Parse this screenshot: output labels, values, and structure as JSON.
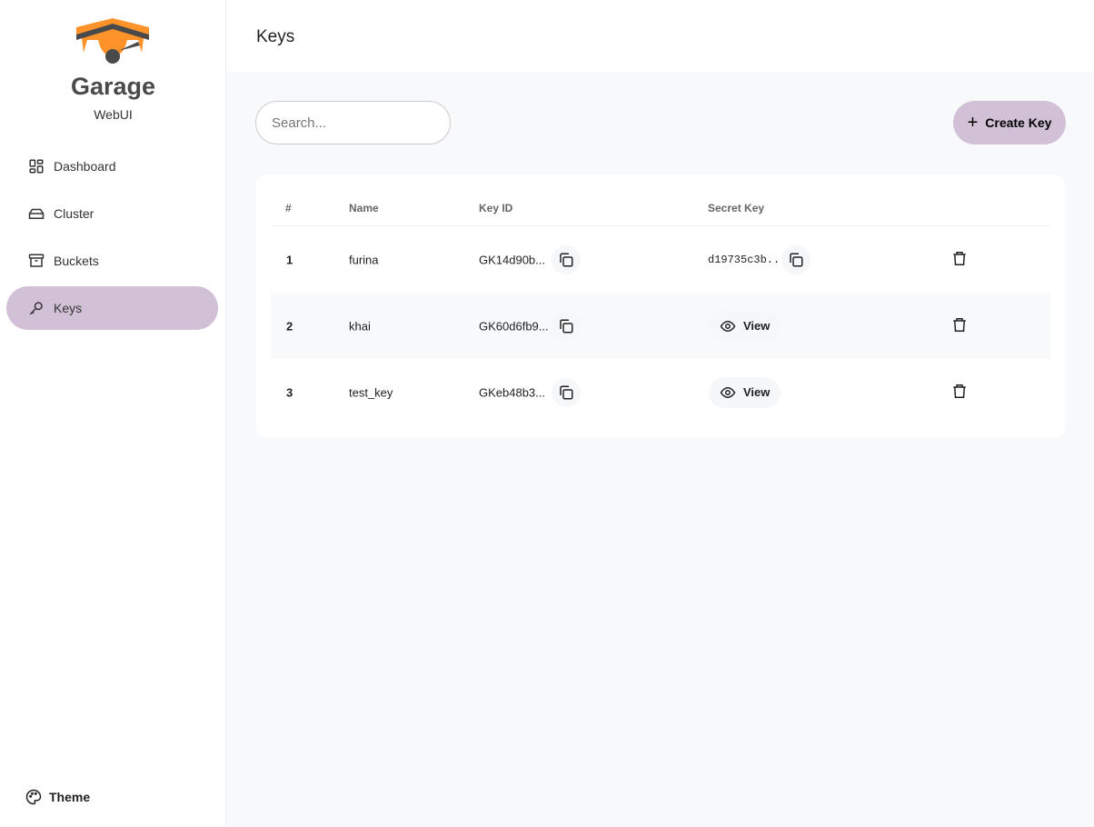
{
  "brand": {
    "name": "Garage",
    "subtitle": "WebUI"
  },
  "nav": [
    {
      "label": "Dashboard"
    },
    {
      "label": "Cluster"
    },
    {
      "label": "Buckets"
    },
    {
      "label": "Keys"
    }
  ],
  "theme_label": "Theme",
  "header": {
    "title": "Keys"
  },
  "search": {
    "placeholder": "Search..."
  },
  "create_label": "Create Key",
  "table": {
    "headers": [
      "#",
      "Name",
      "Key ID",
      "Secret Key"
    ],
    "rows": [
      {
        "num": "1",
        "name": "furina",
        "key_id": "GK14d90b...",
        "secret": "d19735c3b..."
      },
      {
        "num": "2",
        "name": "khai",
        "key_id": "GK60d6fb9...",
        "secret_action": "View"
      },
      {
        "num": "3",
        "name": "test_key",
        "key_id": "GKeb48b3...",
        "secret_action": "View"
      }
    ]
  },
  "colors": {
    "accent": "#d1c0d6",
    "logo_orange": "#ff9329",
    "logo_gray": "#4a4a4a"
  }
}
